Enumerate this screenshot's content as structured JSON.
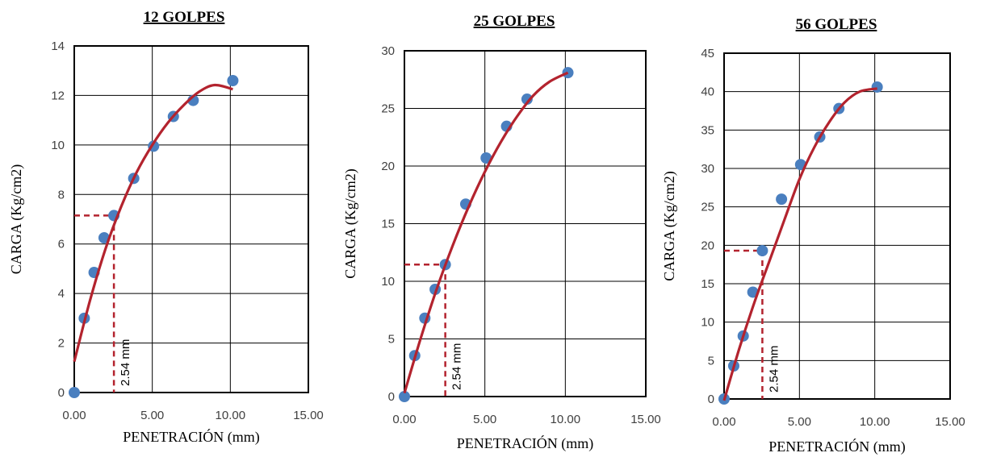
{
  "chart_data": [
    {
      "type": "scatter",
      "title": "12 GOLPES",
      "xlabel": "PENETRACIÓN (mm)",
      "ylabel": "CARGA (Kg/cm2)",
      "xlim": [
        0,
        15
      ],
      "ylim": [
        0,
        14
      ],
      "x_ticks": [
        "0.00",
        "5.00",
        "10.00",
        "15.00"
      ],
      "y_ticks": [
        "0",
        "2",
        "4",
        "6",
        "8",
        "10",
        "12",
        "14"
      ],
      "grid": true,
      "points": {
        "x": [
          0,
          0.64,
          1.27,
          1.91,
          2.54,
          3.81,
          5.08,
          6.35,
          7.62,
          10.16
        ],
        "y": [
          0,
          3.0,
          4.85,
          6.25,
          7.15,
          8.65,
          9.95,
          11.15,
          11.8,
          12.6
        ]
      },
      "trendline": {
        "x": [
          0,
          1,
          2,
          3,
          4,
          5,
          6,
          7,
          8,
          9,
          10.16
        ],
        "y": [
          1.25,
          3.7,
          5.8,
          7.5,
          8.9,
          10.0,
          10.9,
          11.6,
          12.15,
          12.42,
          12.25
        ]
      },
      "reference": {
        "x": 2.54,
        "y": 7.15,
        "label": "2.54 mm"
      }
    },
    {
      "type": "scatter",
      "title": "25 GOLPES",
      "xlabel": "PENETRACIÓN (mm)",
      "ylabel": "CARGA (Kg/cm2)",
      "xlim": [
        0,
        15
      ],
      "ylim": [
        0,
        30
      ],
      "x_ticks": [
        "0.00",
        "5.00",
        "10.00",
        "15.00"
      ],
      "y_ticks": [
        "0",
        "5",
        "10",
        "15",
        "20",
        "25",
        "30"
      ],
      "grid": true,
      "points": {
        "x": [
          0,
          0.64,
          1.27,
          1.91,
          2.54,
          3.81,
          5.08,
          6.35,
          7.62,
          10.16
        ],
        "y": [
          0,
          3.55,
          6.8,
          9.3,
          11.45,
          16.7,
          20.7,
          23.45,
          25.8,
          28.1
        ]
      },
      "trendline": {
        "x": [
          0,
          1,
          2,
          3,
          4,
          5,
          6,
          7,
          8,
          9,
          10.16
        ],
        "y": [
          0.3,
          5.0,
          9.3,
          13.1,
          16.5,
          19.5,
          22.1,
          24.3,
          26.1,
          27.3,
          28.1
        ]
      },
      "reference": {
        "x": 2.54,
        "y": 11.45,
        "label": "2.54 mm"
      }
    },
    {
      "type": "scatter",
      "title": "56 GOLPES",
      "xlabel": "PENETRACIÓN (mm)",
      "ylabel": "CARGA (Kg/cm2)",
      "xlim": [
        0,
        15
      ],
      "ylim": [
        0,
        45
      ],
      "x_ticks": [
        "0.00",
        "5.00",
        "10.00",
        "15.00"
      ],
      "y_ticks": [
        "0",
        "5",
        "10",
        "15",
        "20",
        "25",
        "30",
        "35",
        "40",
        "45"
      ],
      "grid": true,
      "points": {
        "x": [
          0,
          0.64,
          1.27,
          1.91,
          2.54,
          3.81,
          5.08,
          6.35,
          7.62,
          10.16
        ],
        "y": [
          0,
          4.3,
          8.2,
          13.9,
          19.3,
          26.0,
          30.5,
          34.1,
          37.8,
          40.6
        ]
      },
      "trendline": {
        "x": [
          0,
          1,
          2,
          3,
          4,
          5,
          6,
          7,
          8,
          9,
          10.16
        ],
        "y": [
          -0.2,
          6.5,
          12.5,
          17.9,
          23.3,
          28.6,
          32.8,
          36.1,
          38.6,
          40.0,
          40.4
        ]
      },
      "reference": {
        "x": 2.54,
        "y": 19.3,
        "label": "2.54 mm"
      }
    }
  ],
  "colors": {
    "marker": "#4a7fbf",
    "trendline": "#b3232e",
    "reference": "#b3232e",
    "grid": "#000000"
  }
}
